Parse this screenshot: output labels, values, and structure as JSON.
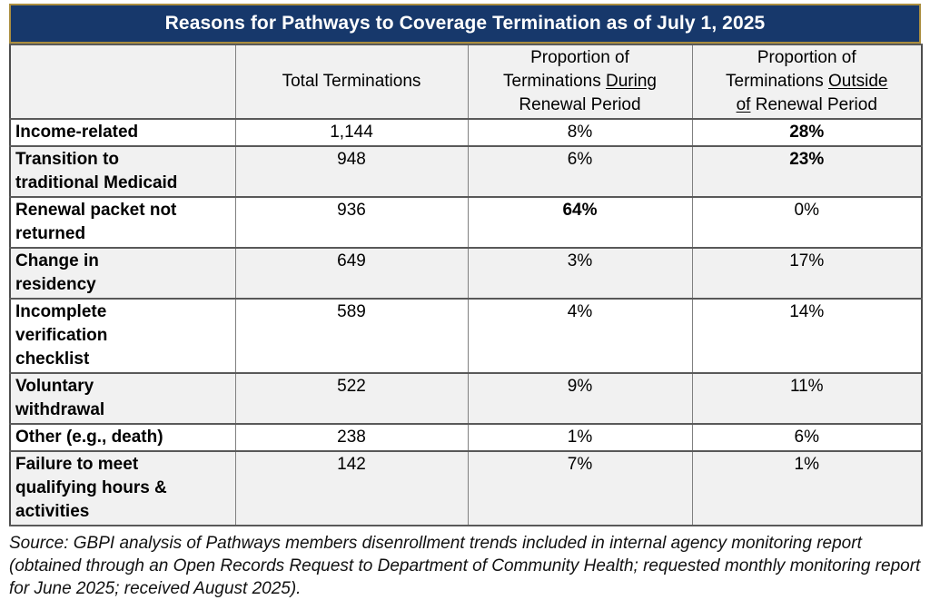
{
  "title": "Reasons for Pathways to Coverage Termination as of July 1, 2025",
  "colors": {
    "title_bg": "#17386B",
    "title_border_gold": "#AB8E3F",
    "title_text": "#FFFFFF",
    "alt_row_bg": "#F1F1F1",
    "row_bg": "#FFFFFF",
    "grid_dark": "#595959",
    "grid_light": "#808080",
    "outer_border": "#4D4D4D"
  },
  "table": {
    "header": {
      "col1": "",
      "col2": "Total Terminations",
      "col3": {
        "line1": "Proportion of",
        "line2_pre": "Terminations ",
        "line2_underline": "During",
        "line3": "Renewal Period"
      },
      "col4": {
        "line1": "Proportion of",
        "line2_pre": "Terminations ",
        "line2_underline": "Outside",
        "line3_underline": "of",
        "line3_post": " Renewal Period"
      }
    },
    "rows": [
      {
        "label": "Income-related",
        "total": "1,144",
        "during": "8%",
        "outside": "28%"
      },
      {
        "label": "Transition to\ntraditional Medicaid",
        "total": "948",
        "during": "6%",
        "outside": "23%"
      },
      {
        "label": "Renewal packet not\nreturned",
        "total": "936",
        "during": "64%",
        "outside": "0%"
      },
      {
        "label": "Change in\nresidency",
        "total": "649",
        "during": "3%",
        "outside": "17%"
      },
      {
        "label": "Incomplete\nverification\nchecklist",
        "total": "589",
        "during": "4%",
        "outside": "14%"
      },
      {
        "label": "Voluntary\nwithdrawal",
        "total": "522",
        "during": "9%",
        "outside": "11%"
      },
      {
        "label": "Other (e.g., death)",
        "total": "238",
        "during": "1%",
        "outside": "6%"
      },
      {
        "label": "Failure to meet\nqualifying hours &\nactivities",
        "total": "142",
        "during": "7%",
        "outside": "1%"
      }
    ]
  },
  "source_note": "Source: GBPI analysis of Pathways members disenrollment trends included in internal agency monitoring report (obtained through an Open Records Request to Department of Community Health; requested monthly monitoring report for June 2025; received August 2025).",
  "chart_data": {
    "type": "table",
    "title": "Reasons for Pathways to Coverage Termination as of July 1, 2025",
    "columns": [
      "",
      "Total Terminations",
      "Proportion of Terminations During Renewal Period",
      "Proportion of Terminations Outside of Renewal Period"
    ],
    "rows": [
      [
        "Income-related",
        1144,
        "8%",
        "28%"
      ],
      [
        "Transition to traditional Medicaid",
        948,
        "6%",
        "23%"
      ],
      [
        "Renewal packet not returned",
        936,
        "64%",
        "0%"
      ],
      [
        "Change in residency",
        649,
        "3%",
        "17%"
      ],
      [
        "Incomplete verification checklist",
        589,
        "4%",
        "14%"
      ],
      [
        "Voluntary withdrawal",
        522,
        "9%",
        "11%"
      ],
      [
        "Other (e.g., death)",
        238,
        "1%",
        "6%"
      ],
      [
        "Failure to meet qualifying hours & activities",
        142,
        "7%",
        "1%"
      ]
    ],
    "emphasis": [
      {
        "row": "Income-related",
        "column": "Proportion of Terminations Outside of Renewal Period",
        "style": "bold"
      },
      {
        "row": "Transition to traditional Medicaid",
        "column": "Proportion of Terminations Outside of Renewal Period",
        "style": "bold"
      },
      {
        "row": "Renewal packet not returned",
        "column": "Proportion of Terminations During Renewal Period",
        "style": "bold"
      }
    ],
    "source": "Source: GBPI analysis of Pathways members disenrollment trends included in internal agency monitoring report (obtained through an Open Records Request to Department of Community Health; requested monthly monitoring report for June 2025; received August 2025)."
  }
}
